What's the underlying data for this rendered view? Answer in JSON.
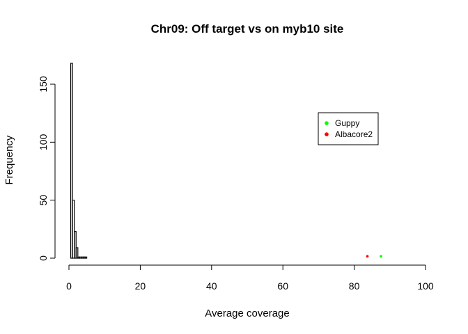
{
  "chart_data": {
    "type": "bar",
    "title": "Chr09: Off target vs on myb10 site",
    "xlabel": "Average coverage",
    "ylabel": "Frequency",
    "xlim": [
      0,
      100
    ],
    "ylim": [
      0,
      170
    ],
    "xticks": [
      0,
      20,
      40,
      60,
      80,
      100
    ],
    "yticks": [
      0,
      50,
      100,
      150
    ],
    "histogram": {
      "bins": [
        {
          "x0": 0.5,
          "x1": 1.0,
          "count": 168
        },
        {
          "x0": 1.0,
          "x1": 1.5,
          "count": 50
        },
        {
          "x0": 1.5,
          "x1": 2.0,
          "count": 23
        },
        {
          "x0": 2.0,
          "x1": 2.5,
          "count": 9
        },
        {
          "x0": 2.5,
          "x1": 3.0,
          "count": 1
        },
        {
          "x0": 3.0,
          "x1": 3.5,
          "count": 1
        },
        {
          "x0": 3.5,
          "x1": 4.0,
          "count": 1
        },
        {
          "x0": 4.0,
          "x1": 4.5,
          "count": 1
        },
        {
          "x0": 4.5,
          "x1": 5.0,
          "count": 1
        }
      ]
    },
    "series": [
      {
        "name": "Guppy",
        "color": "#00ff00",
        "points": [
          {
            "x": 87.5,
            "y": 1
          }
        ]
      },
      {
        "name": "Albacore2",
        "color": "#ff0000",
        "points": [
          {
            "x": 83.7,
            "y": 1
          }
        ]
      }
    ],
    "legend_position": "right"
  }
}
